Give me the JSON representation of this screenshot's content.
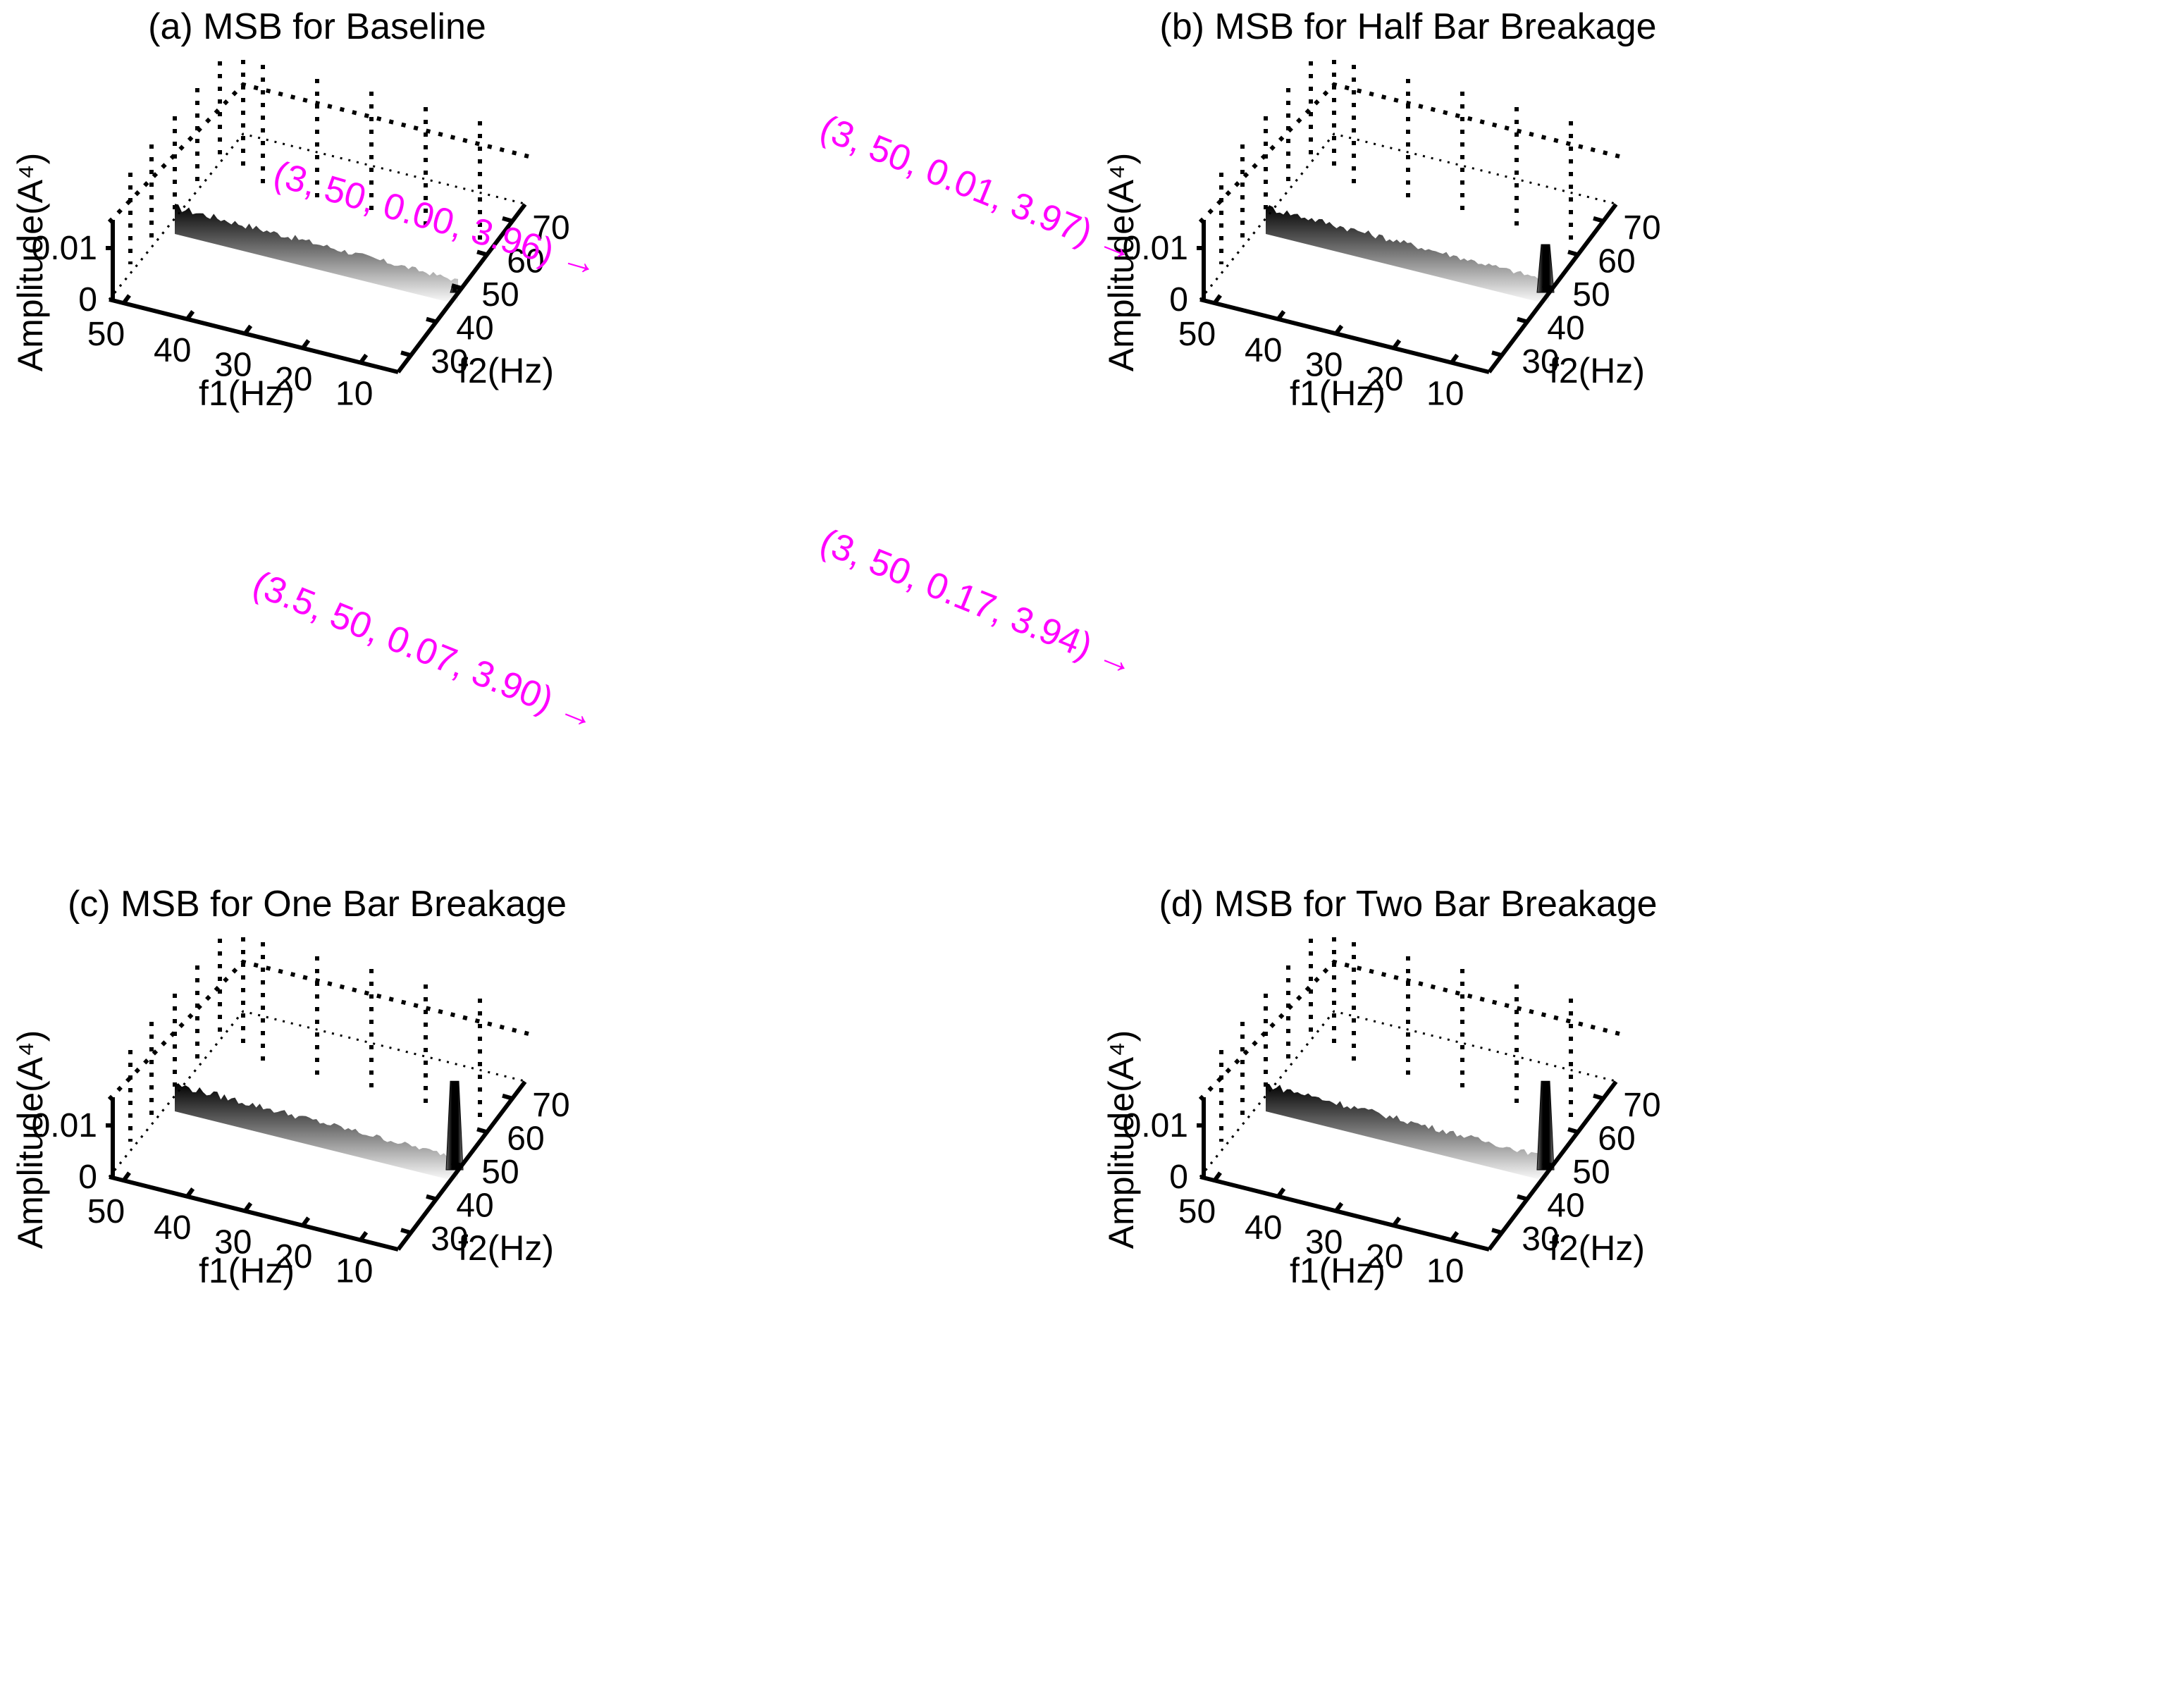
{
  "colors": {
    "annotation": "#ff00ff",
    "surface_dark": "#000000",
    "surface_light": "#ffffff"
  },
  "chart_data": [
    {
      "type": "surface",
      "title": "(a) MSB for Baseline",
      "xlabel": "f1(Hz)",
      "ylabel": "f2(Hz)",
      "zlabel": "Amplitude(A⁴)",
      "x_ticks": [
        "50",
        "40",
        "30",
        "20",
        "10"
      ],
      "y_ticks": [
        "30",
        "40",
        "50",
        "60",
        "70"
      ],
      "z_ticks": [
        "0",
        "0.01"
      ],
      "annotation": "(3, 50, 0.00, 3.96)",
      "peak": {
        "f1": 3,
        "f2": 50,
        "amplitude": 0.0
      },
      "peak_visible_height": 0.0015,
      "noise_level": 0.0025
    },
    {
      "type": "surface",
      "title": "(b) MSB for Half Bar Breakage",
      "xlabel": "f1(Hz)",
      "ylabel": "f2(Hz)",
      "zlabel": "Amplitude(A⁴)",
      "x_ticks": [
        "50",
        "40",
        "30",
        "20",
        "10"
      ],
      "y_ticks": [
        "30",
        "40",
        "50",
        "60",
        "70"
      ],
      "z_ticks": [
        "0",
        "0.01"
      ],
      "annotation": "(3, 50, 0.01, 3.97)",
      "peak": {
        "f1": 3,
        "f2": 50,
        "amplitude": 0.01
      },
      "peak_visible_height": 0.01,
      "noise_level": 0.0025
    },
    {
      "type": "surface",
      "title": "(c) MSB for One Bar Breakage",
      "xlabel": "f1(Hz)",
      "ylabel": "f2(Hz)",
      "zlabel": "Amplitude(A⁴)",
      "x_ticks": [
        "50",
        "40",
        "30",
        "20",
        "10"
      ],
      "y_ticks": [
        "30",
        "40",
        "50",
        "60",
        "70"
      ],
      "z_ticks": [
        "0",
        "0.01"
      ],
      "annotation": "(3.5, 50, 0.07, 3.90)",
      "peak": {
        "f1": 3.5,
        "f2": 50,
        "amplitude": 0.07
      },
      "peak_visible_height": 0.0185,
      "noise_level": 0.0025
    },
    {
      "type": "surface",
      "title": "(d) MSB for Two Bar Breakage",
      "xlabel": "f1(Hz)",
      "ylabel": "f2(Hz)",
      "zlabel": "Amplitude(A⁴)",
      "x_ticks": [
        "50",
        "40",
        "30",
        "20",
        "10"
      ],
      "y_ticks": [
        "30",
        "40",
        "50",
        "60",
        "70"
      ],
      "z_ticks": [
        "0",
        "0.01"
      ],
      "annotation": "(3, 50, 0.17, 3.94)",
      "peak": {
        "f1": 3,
        "f2": 50,
        "amplitude": 0.17
      },
      "peak_visible_height": 0.0185,
      "noise_level": 0.0025
    }
  ]
}
